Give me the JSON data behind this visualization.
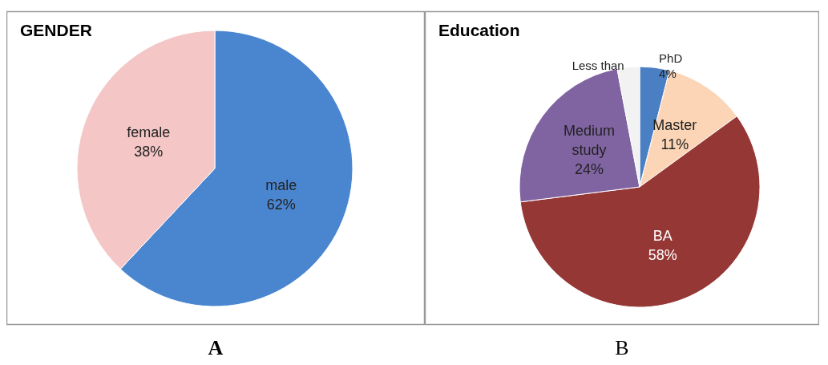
{
  "chart_data": [
    {
      "type": "pie",
      "title": "GENDER",
      "categories": [
        "male",
        "female"
      ],
      "values": [
        62,
        38
      ],
      "colors": [
        "#4a86d0",
        "#f4c6c6"
      ],
      "value_labels": [
        "62%",
        "38%"
      ],
      "annotations": [
        "A"
      ]
    },
    {
      "type": "pie",
      "title": "Education",
      "categories": [
        "PhD",
        "Master",
        "BA",
        "Medium study",
        "Less than"
      ],
      "values": [
        4,
        11,
        58,
        24,
        3
      ],
      "colors": [
        "#4a7fc4",
        "#fbd5b5",
        "#953735",
        "#8064a2",
        "#f2f2f2"
      ],
      "value_labels": [
        "4%",
        "11%",
        "58%",
        "24%",
        null
      ],
      "annotations": [
        "B"
      ]
    }
  ]
}
